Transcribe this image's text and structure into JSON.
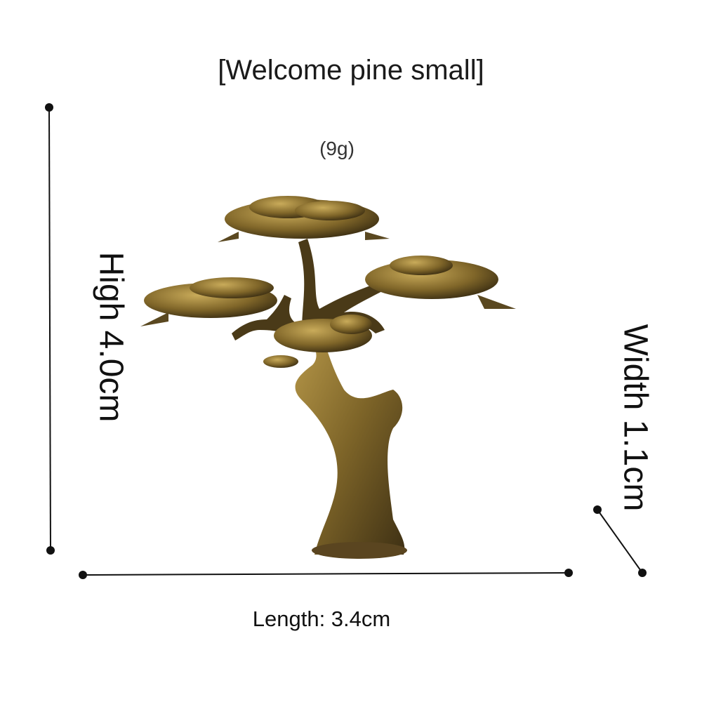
{
  "title": "[Welcome pine small]",
  "weight": "(9g)",
  "dimensions": {
    "height": "High 4.0cm",
    "width": "Width 1.1cm",
    "length": "Length: 3.4cm"
  },
  "product": {
    "image": "brass bonsai pine tree figurine",
    "colors": {
      "brass_light": "#b8994a",
      "brass_mid": "#7d6428",
      "brass_dark": "#3e3014",
      "line": "#111111"
    }
  }
}
